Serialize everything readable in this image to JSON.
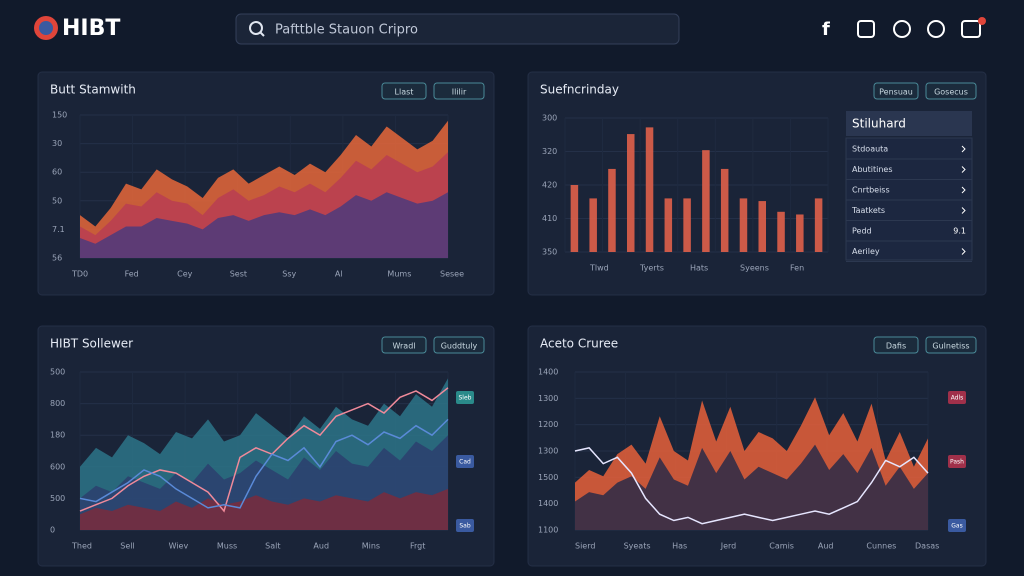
{
  "header": {
    "logo": "HIBT",
    "search": "Pafttble Stauon Cripro"
  },
  "panels": [
    {
      "title": "Butt Stamwith",
      "buttons": [
        "Llast",
        "Ililir"
      ],
      "type": "area",
      "ylim": [
        0,
        100
      ],
      "ylabels": [
        "150",
        "30",
        "60",
        "50",
        "7.1",
        "56"
      ],
      "xlabels": [
        "TD0",
        "Fed",
        "Cey",
        "Sest",
        "Ssy",
        "Al",
        "Mums",
        "Sesee"
      ],
      "series": [
        {
          "type": "area",
          "color": "#e8673a",
          "values": [
            30,
            22,
            35,
            52,
            48,
            62,
            55,
            50,
            42,
            56,
            62,
            52,
            58,
            64,
            58,
            66,
            60,
            72,
            86,
            78,
            92,
            84,
            76,
            82,
            96
          ]
        },
        {
          "type": "area",
          "color": "#b83d52",
          "values": [
            22,
            16,
            26,
            38,
            36,
            46,
            40,
            38,
            30,
            42,
            48,
            40,
            44,
            50,
            46,
            52,
            46,
            56,
            68,
            62,
            72,
            66,
            60,
            64,
            74
          ]
        },
        {
          "type": "area",
          "color": "#4c3a7c",
          "values": [
            14,
            10,
            16,
            22,
            22,
            28,
            26,
            24,
            20,
            28,
            30,
            26,
            30,
            32,
            30,
            34,
            30,
            36,
            44,
            40,
            46,
            42,
            38,
            40,
            46
          ]
        }
      ]
    },
    {
      "title": "Suefncrinday",
      "buttons": [
        "Pensuau",
        "Gosecus"
      ],
      "type": "bar",
      "ylim": [
        0,
        100
      ],
      "color": "#e0604a",
      "ylabels": [
        "300",
        "320",
        "420",
        "410",
        "350"
      ],
      "xlabels": [
        "Tlwd",
        "Tyerts",
        "Hats",
        "Syeens",
        "Fen"
      ],
      "values": [
        50,
        40,
        62,
        88,
        93,
        40,
        40,
        76,
        62,
        40,
        38,
        30,
        28,
        40
      ],
      "list": {
        "title": "Stiluhard",
        "rows": [
          {
            "label": "Stdoauta"
          },
          {
            "label": "Abutitines"
          },
          {
            "label": "Cnrtbeiss"
          },
          {
            "label": "Taatkets"
          },
          {
            "label": "Pedd",
            "value": "9.1"
          },
          {
            "label": "Aeriley"
          }
        ]
      }
    },
    {
      "title": "HIBT Sollewer",
      "buttons": [
        "Wradl",
        "Guddtuly"
      ],
      "type": "area",
      "ylim": [
        0,
        100
      ],
      "ylabels": [
        "500",
        "800",
        "180",
        "600",
        "500",
        "0"
      ],
      "xlabels": [
        "Thed",
        "Sell",
        "Wiev",
        "Muss",
        "Salt",
        "Aud",
        "Mins",
        "Frgt"
      ],
      "badges": [
        {
          "label": "Sleb",
          "color": "#2a8a8a"
        },
        {
          "label": "Cad",
          "color": "#3a5aa0"
        },
        {
          "label": "Sab",
          "color": "#3a5aa0"
        }
      ],
      "series": [
        {
          "type": "area",
          "color": "#2d7488",
          "values": [
            40,
            52,
            46,
            60,
            55,
            48,
            62,
            58,
            70,
            56,
            60,
            74,
            66,
            58,
            72,
            64,
            78,
            70,
            66,
            80,
            72,
            86,
            78,
            96
          ]
        },
        {
          "type": "area",
          "color": "#2b3f6e",
          "values": [
            20,
            28,
            24,
            34,
            30,
            26,
            36,
            30,
            42,
            32,
            36,
            44,
            38,
            32,
            46,
            38,
            50,
            42,
            40,
            52,
            44,
            56,
            50,
            60
          ]
        },
        {
          "type": "area",
          "color": "#7a2c3c",
          "values": [
            10,
            14,
            12,
            16,
            14,
            12,
            18,
            14,
            20,
            16,
            18,
            22,
            18,
            16,
            20,
            18,
            22,
            20,
            18,
            24,
            20,
            24,
            22,
            26
          ]
        },
        {
          "type": "line",
          "color": "#f08a9a",
          "values": [
            12,
            16,
            20,
            28,
            34,
            38,
            36,
            30,
            24,
            12,
            46,
            52,
            48,
            58,
            66,
            60,
            72,
            76,
            80,
            74,
            84,
            88,
            82,
            90
          ]
        },
        {
          "type": "line",
          "color": "#5a8ad8",
          "values": [
            20,
            18,
            24,
            30,
            38,
            34,
            26,
            20,
            14,
            16,
            14,
            34,
            48,
            44,
            52,
            40,
            56,
            60,
            54,
            62,
            58,
            66,
            60,
            70
          ]
        }
      ]
    },
    {
      "title": "Aceto Cruree",
      "buttons": [
        "Dafis",
        "Gulnetiss"
      ],
      "type": "area",
      "ylim": [
        0,
        100
      ],
      "ylabels": [
        "1400",
        "1300",
        "1200",
        "1300",
        "1500",
        "1400",
        "1100"
      ],
      "xlabels": [
        "Sierd",
        "Syeats",
        "Has",
        "Jerd",
        "Camis",
        "Aud",
        "Cunnes",
        "Dasas"
      ],
      "badges": [
        {
          "label": "Adls",
          "color": "#a0304a"
        },
        {
          "label": "Pash",
          "color": "#a0304a"
        },
        {
          "label": "Gas",
          "color": "#3a5aa0"
        }
      ],
      "series": [
        {
          "type": "area",
          "color": "#e8603a",
          "values": [
            30,
            38,
            34,
            48,
            54,
            42,
            72,
            50,
            44,
            82,
            56,
            78,
            50,
            62,
            58,
            50,
            66,
            84,
            60,
            74,
            56,
            80,
            44,
            62,
            40,
            58
          ]
        },
        {
          "type": "area",
          "color": "#2a2a48",
          "values": [
            18,
            24,
            22,
            30,
            34,
            26,
            46,
            32,
            28,
            52,
            36,
            50,
            32,
            40,
            36,
            32,
            42,
            54,
            38,
            48,
            36,
            52,
            28,
            40,
            26,
            36
          ]
        },
        {
          "type": "line",
          "color": "#e6e6ff",
          "values": [
            50,
            52,
            42,
            46,
            36,
            20,
            10,
            6,
            8,
            4,
            6,
            8,
            10,
            8,
            6,
            8,
            10,
            12,
            10,
            14,
            18,
            30,
            44,
            40,
            46,
            36
          ]
        }
      ]
    }
  ]
}
